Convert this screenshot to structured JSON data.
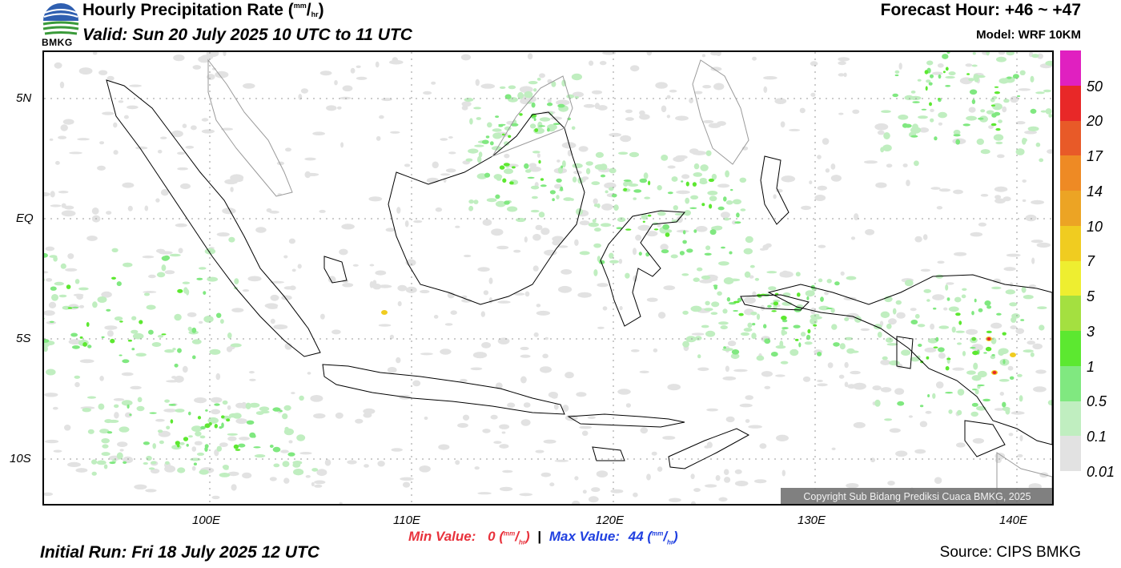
{
  "header": {
    "title": "Hourly Precipitation Rate",
    "title_unit_num": "mm",
    "title_unit_den": "hr",
    "valid": "Valid: Sun 20 July 2025 10 UTC to 11 UTC",
    "forecast_hour": "Forecast Hour: +46 ~ +47",
    "model": "Model: WRF 10KM"
  },
  "logo": {
    "label": "BMKG",
    "icon": "bmkg-logo-icon"
  },
  "map": {
    "lat_labels": [
      "5N",
      "EQ",
      "5S",
      "10S"
    ],
    "lon_labels": [
      "100E",
      "110E",
      "120E",
      "130E",
      "140E"
    ],
    "copyright": "Copyright Sub Bidang Prediksi Cuaca BMKG, 2025"
  },
  "colorbar": {
    "labels": [
      "50",
      "20",
      "17",
      "14",
      "10",
      "7",
      "5",
      "3",
      "1",
      "0.5",
      "0.1",
      "0.01"
    ],
    "colors": [
      "#e020c0",
      "#e82828",
      "#e85a28",
      "#ee8a24",
      "#eca424",
      "#f0cc20",
      "#eeee30",
      "#a4e040",
      "#5ce830",
      "#80e880",
      "#c0eec0",
      "#e2e2e2"
    ]
  },
  "footer": {
    "min_label": "Min Value:",
    "min_value": "0",
    "max_label": "Max Value:",
    "max_value": "44",
    "unit_num": "mm",
    "unit_den": "hr",
    "separator": "|",
    "initial_run": "Initial Run: Fri 18 July 2025 12 UTC",
    "source": "Source: CIPS BMKG"
  }
}
